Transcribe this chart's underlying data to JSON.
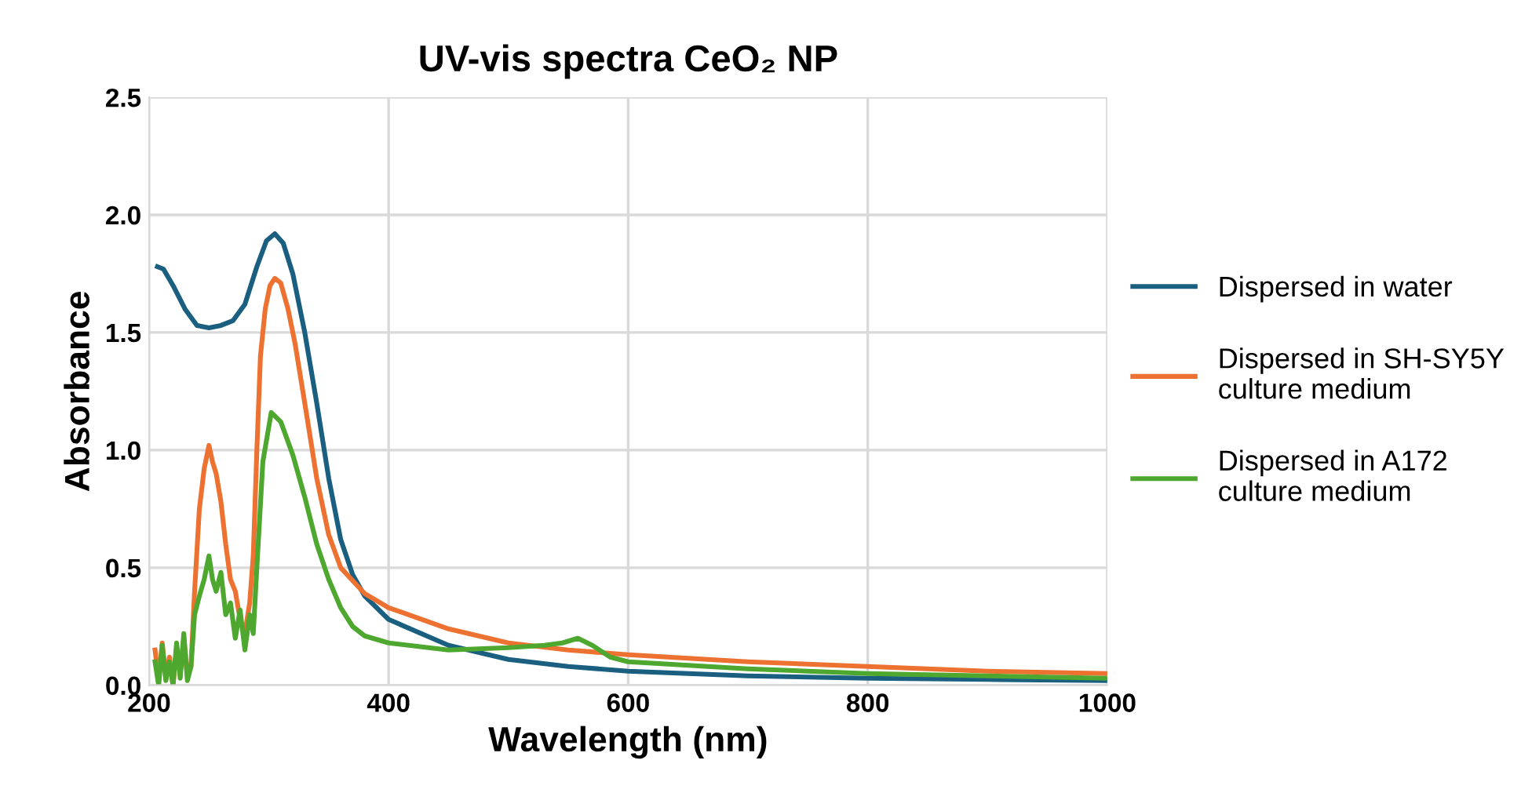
{
  "chart_data": {
    "type": "line",
    "title": "UV-vis spectra CeO₂ NP",
    "xlabel": "Wavelength (nm)",
    "ylabel": "Absorbance",
    "xlim": [
      200,
      1000
    ],
    "xticks": [
      200,
      400,
      600,
      800,
      1000
    ],
    "ylim": [
      0,
      2.5
    ],
    "yticks": [
      {
        "value": 0,
        "label": "0.0"
      },
      {
        "value": 0.5,
        "label": "0.5"
      },
      {
        "value": 1,
        "label": "1.0"
      },
      {
        "value": 1.5,
        "label": "1.5"
      },
      {
        "value": 2,
        "label": "2.0"
      },
      {
        "value": 2.5,
        "label": "2.5"
      }
    ],
    "grid": true,
    "legend": "right",
    "marker": "none",
    "line_style": "solid",
    "series": [
      {
        "name": "Dispersed in water",
        "color": "#1a5f80",
        "x": [
          207,
          212,
          220,
          230,
          240,
          250,
          260,
          270,
          280,
          290,
          298,
          305,
          312,
          320,
          330,
          340,
          350,
          360,
          370,
          380,
          400,
          450,
          500,
          550,
          600,
          700,
          800,
          900,
          1000
        ],
        "values": [
          1.78,
          1.77,
          1.7,
          1.6,
          1.53,
          1.52,
          1.53,
          1.55,
          1.62,
          1.78,
          1.89,
          1.92,
          1.88,
          1.75,
          1.5,
          1.2,
          0.88,
          0.62,
          0.47,
          0.38,
          0.28,
          0.17,
          0.11,
          0.08,
          0.06,
          0.04,
          0.03,
          0.025,
          0.02
        ]
      },
      {
        "name": "Dispersed in SH-SY5Y culture medium",
        "color": "#ed7232",
        "x": [
          205,
          208,
          211,
          214,
          217,
          220,
          223,
          226,
          229,
          232,
          235,
          238,
          242,
          246,
          250,
          253,
          256,
          260,
          264,
          268,
          272,
          276,
          280,
          284,
          287,
          290,
          293,
          297,
          301,
          305,
          310,
          316,
          322,
          330,
          340,
          350,
          360,
          380,
          400,
          450,
          500,
          550,
          600,
          700,
          800,
          900,
          1000
        ],
        "values": [
          0.15,
          0.02,
          0.18,
          0.03,
          0.12,
          0.0,
          0.16,
          0.05,
          0.2,
          0.04,
          0.08,
          0.4,
          0.75,
          0.92,
          1.02,
          0.95,
          0.9,
          0.78,
          0.6,
          0.45,
          0.4,
          0.28,
          0.22,
          0.35,
          0.55,
          1.0,
          1.4,
          1.6,
          1.7,
          1.73,
          1.71,
          1.6,
          1.45,
          1.2,
          0.88,
          0.64,
          0.5,
          0.39,
          0.33,
          0.24,
          0.18,
          0.15,
          0.13,
          0.1,
          0.08,
          0.06,
          0.05
        ]
      },
      {
        "name": "Dispersed in A172 culture medium",
        "color": "#4ea72e",
        "x": [
          205,
          208,
          211,
          214,
          217,
          220,
          223,
          226,
          229,
          232,
          235,
          238,
          242,
          246,
          250,
          253,
          256,
          260,
          264,
          268,
          272,
          276,
          280,
          284,
          287,
          290,
          295,
          302,
          310,
          320,
          330,
          340,
          350,
          360,
          370,
          380,
          400,
          450,
          500,
          530,
          545,
          558,
          570,
          585,
          600,
          700,
          800,
          900,
          1000
        ],
        "values": [
          0.1,
          0.0,
          0.17,
          0.02,
          0.1,
          0.0,
          0.18,
          0.03,
          0.22,
          0.02,
          0.08,
          0.3,
          0.38,
          0.45,
          0.55,
          0.45,
          0.4,
          0.48,
          0.3,
          0.35,
          0.2,
          0.32,
          0.15,
          0.3,
          0.22,
          0.5,
          0.95,
          1.16,
          1.12,
          0.98,
          0.8,
          0.6,
          0.45,
          0.33,
          0.25,
          0.21,
          0.18,
          0.15,
          0.16,
          0.17,
          0.18,
          0.2,
          0.17,
          0.12,
          0.1,
          0.07,
          0.05,
          0.04,
          0.03
        ]
      }
    ]
  }
}
